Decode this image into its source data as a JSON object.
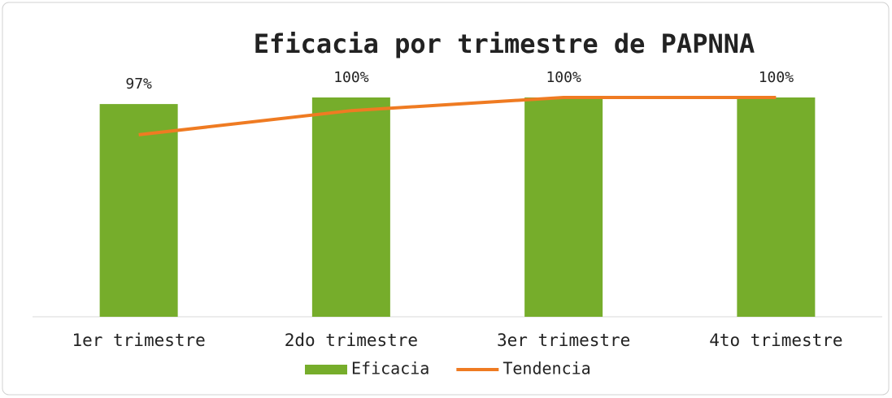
{
  "chart_data": {
    "type": "bar",
    "title": "Eficacia por trimestre de PAPNNA",
    "categories": [
      "1er trimestre",
      "2do trimestre",
      "3er trimestre",
      "4to trimestre"
    ],
    "series": [
      {
        "name": "Eficacia",
        "type": "bar",
        "color": "#76ad2b",
        "values": [
          97,
          100,
          100,
          100
        ],
        "value_labels": [
          "97%",
          "100%",
          "100%",
          "100%"
        ]
      },
      {
        "name": "Tendencia",
        "type": "line",
        "color": "#ef7b22",
        "values": [
          83,
          94,
          100,
          100
        ]
      }
    ],
    "ylim": [
      0,
      100
    ],
    "legend": "bottom"
  }
}
